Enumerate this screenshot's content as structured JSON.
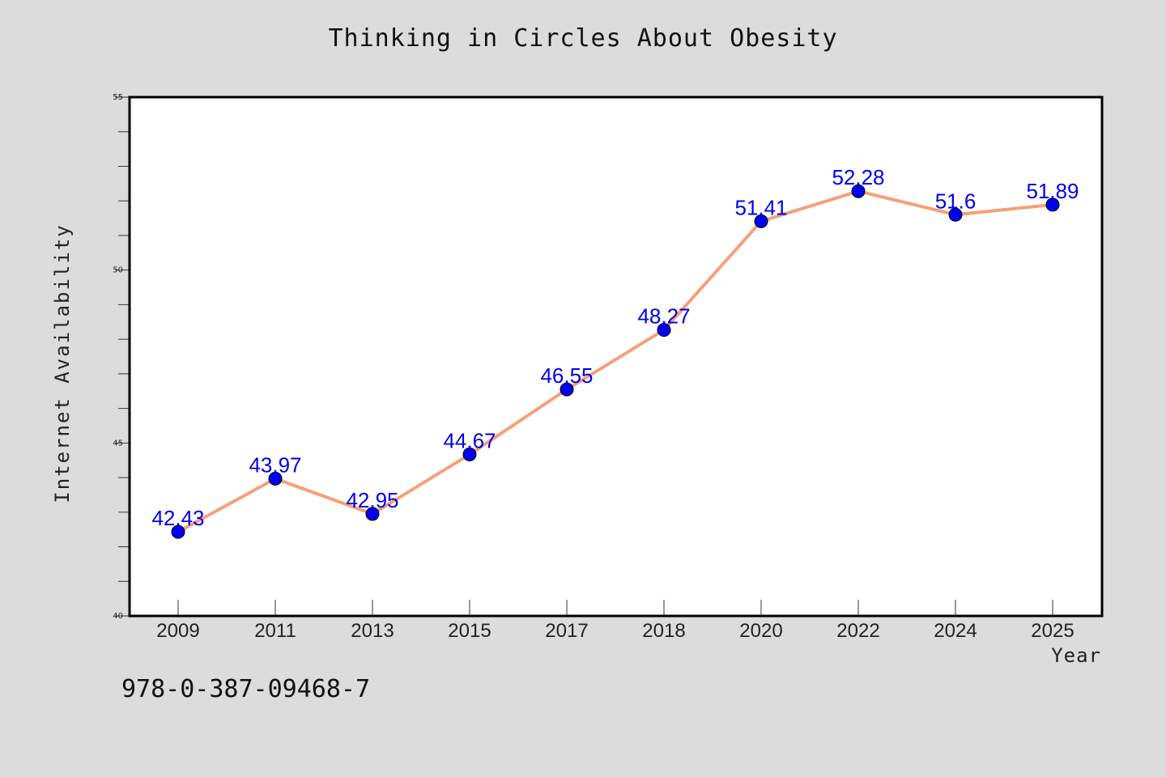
{
  "chart_data": {
    "type": "line",
    "title": "Thinking in Circles About Obesity",
    "xlabel": "Year",
    "ylabel": "Internet Availability",
    "categories": [
      "2009",
      "2011",
      "2013",
      "2015",
      "2017",
      "2018",
      "2020",
      "2022",
      "2024",
      "2025"
    ],
    "series": [
      {
        "values": [
          42.43,
          43.97,
          42.95,
          44.67,
          46.55,
          48.27,
          51.41,
          52.28,
          51.6,
          51.89
        ],
        "labels": [
          "42.43",
          "43.97",
          "42.95",
          "44.67",
          "46.55",
          "48.27",
          "51.41",
          "52.28",
          "51.6",
          "51.89"
        ],
        "line_color": "#f5a07a",
        "marker_color": "#0000ee"
      }
    ],
    "ylim": [
      40,
      55
    ],
    "y_ticks": [
      "40",
      "45",
      "50",
      "55"
    ],
    "grid": false,
    "label_color": "#0000ee"
  },
  "footer": {
    "isbn": "978-0-387-09468-7"
  }
}
